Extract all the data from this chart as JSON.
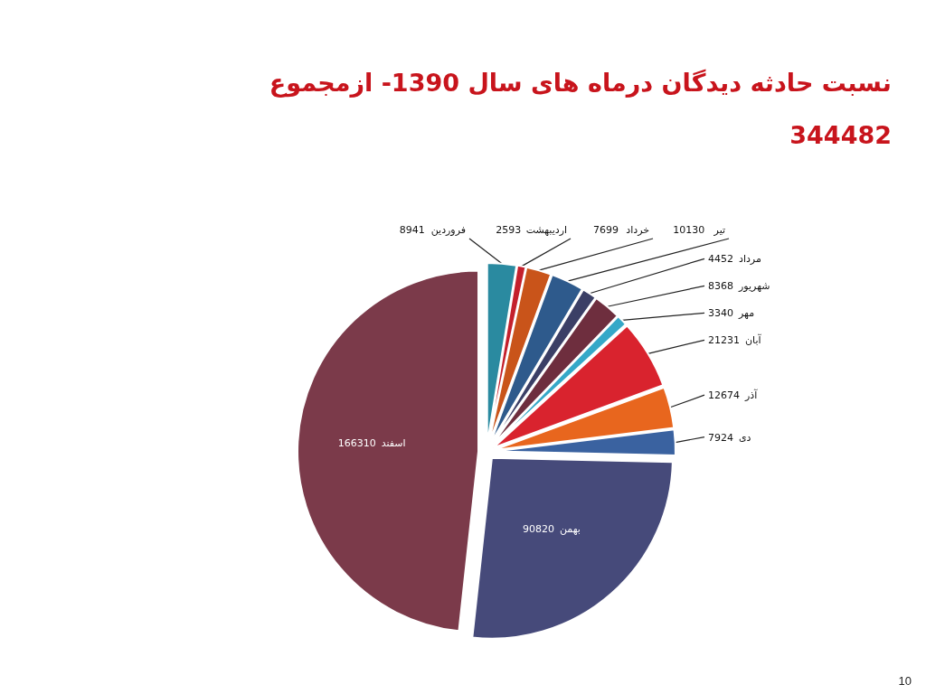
{
  "chart_data": {
    "type": "pie",
    "title": "نسبت حادثه دیدگان درماه های سال 1390- ازمجموع 344482",
    "categories": [
      "فروردین",
      "اردیبهشت",
      "خرداد",
      "تیر",
      "مرداد",
      "شهریور",
      "مهر",
      "آبان",
      "آذر",
      "دی",
      "بهمن",
      "اسفند"
    ],
    "values": [
      8941,
      2593,
      7699,
      10130,
      4452,
      8368,
      3340,
      21231,
      12674,
      7924,
      90820,
      166310
    ],
    "colors": [
      "#2a8aa0",
      "#c4202c",
      "#c9541a",
      "#2e5a8c",
      "#3b3f66",
      "#6e2e3e",
      "#35a8c8",
      "#d9232e",
      "#e8661e",
      "#3a62a0",
      "#464a7a",
      "#7b3a4a"
    ],
    "data_labels": true,
    "legend": false,
    "annotations": [
      "10"
    ]
  }
}
